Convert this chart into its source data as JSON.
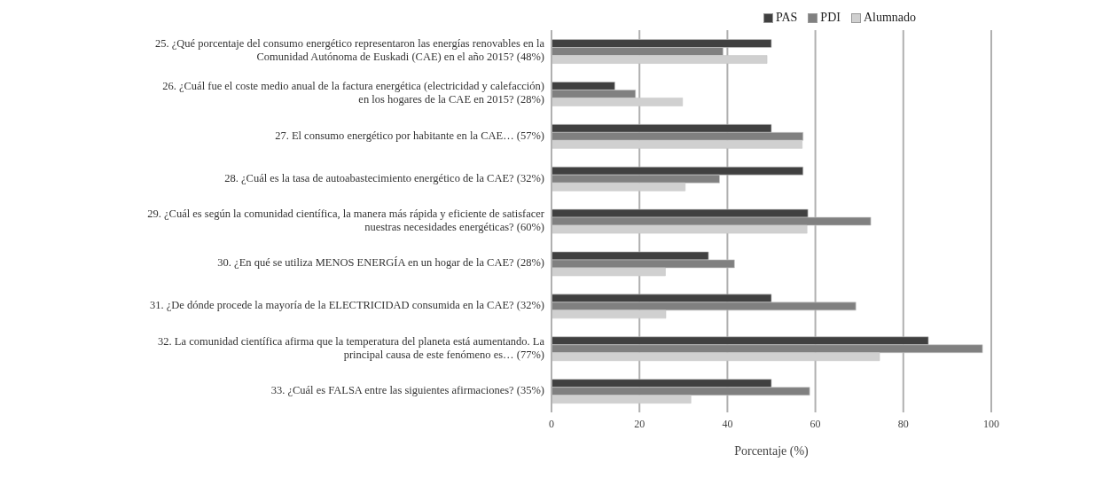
{
  "chart_data": {
    "type": "bar",
    "orientation": "horizontal",
    "xlabel": "Porcentaje (%)",
    "categories": [
      "25. ¿Qué porcentaje del consumo energético representaron las energías renovables en la Comunidad Autónoma de Euskadi (CAE) en el año 2015? (48%)",
      "26. ¿Cuál fue el coste medio anual de la factura energética (electricidad y calefacción) en los hogares de la CAE en 2015? (28%)",
      "27. El consumo energético por habitante en la CAE… (57%)",
      "28. ¿Cuál es la tasa de autoabastecimiento energético de la CAE? (32%)",
      "29. ¿Cuál es según la comunidad científica, la manera más rápida y eficiente de satisfacer nuestras necesidades energéticas? (60%)",
      "30. ¿En qué se utiliza MENOS ENERGÍA en un hogar de la CAE? (28%)",
      "31. ¿De dónde procede la mayoría de la ELECTRICIDAD consumida en la CAE? (32%)",
      "32. La comunidad científica afirma que la temperatura del planeta está aumentando. La principal causa de este fenómeno es… (77%)",
      "33. ¿Cuál es FALSA entre las siguientes afirmaciones? (35%)"
    ],
    "series": [
      {
        "name": "PAS",
        "color": "#404040",
        "values": [
          50,
          14.4,
          50,
          57.2,
          58.3,
          35.7,
          50,
          85.7,
          50
        ]
      },
      {
        "name": "PDI",
        "color": "#808080",
        "values": [
          39,
          19.1,
          57.2,
          38.2,
          72.6,
          41.6,
          69.2,
          98,
          58.7
        ]
      },
      {
        "name": "Alumnado",
        "color": "#d0d0d0",
        "values": [
          49,
          29.8,
          57,
          30.4,
          58.1,
          25.9,
          26,
          74.6,
          31.7
        ]
      }
    ],
    "xlim": [
      0,
      100
    ],
    "xticks": [
      0,
      20,
      40,
      60,
      80,
      100
    ],
    "grid": "x",
    "legend": "top"
  }
}
